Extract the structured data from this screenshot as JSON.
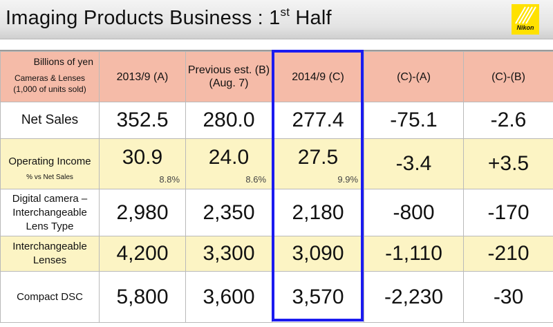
{
  "slide": {
    "title_main": "Imaging Products Business : 1",
    "title_sup": "st",
    "title_tail": " Half",
    "logo_text": "Nikon"
  },
  "table": {
    "corner_top": "Billions of yen",
    "corner_bottom": "Cameras & Lenses (1,000 of units sold)",
    "headers": [
      "2013/9 (A)",
      "Previous est. (B)  (Aug. 7)",
      "2014/9 (C)",
      "(C)-(A)",
      "(C)-(B)"
    ],
    "net_sales": {
      "label": "Net Sales",
      "values": [
        "352.5",
        "280.0",
        "277.4",
        "-75.1",
        "-2.6"
      ]
    },
    "operating_income": {
      "label": "Operating Income",
      "sublabel": "% vs Net Sales",
      "values": [
        "30.9",
        "24.0",
        "27.5",
        "-3.4",
        "+3.5"
      ],
      "percents": [
        "8.8",
        "8.6",
        "9.9"
      ],
      "percent_sign": "%"
    },
    "digital_camera": {
      "label": "Digital camera – Interchangeable Lens Type",
      "values": [
        "2,980",
        "2,350",
        "2,180",
        "-800",
        "-170"
      ]
    },
    "lenses": {
      "label": "Interchangeable Lenses",
      "values": [
        "4,200",
        "3,300",
        "3,090",
        "-1,110",
        "-210"
      ]
    },
    "compact": {
      "label": "Compact DSC",
      "values": [
        "5,800",
        "3,600",
        "3,570",
        "-2,230",
        "-30"
      ]
    }
  },
  "colors": {
    "header_fill": "#f5bba8",
    "alt_row_fill": "#fcf4c4",
    "highlight_border": "#1b1bf0",
    "logo_yellow": "#ffe100"
  }
}
